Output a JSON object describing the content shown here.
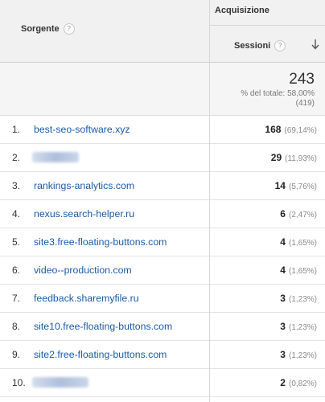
{
  "header": {
    "source_label": "Sorgente",
    "help_glyph": "?",
    "acquisition_label": "Acquisizione",
    "sessions_label": "Sessioni",
    "sort_icon": "arrow-down-icon"
  },
  "totals": {
    "sessions": "243",
    "line1": "% del totale: 58,00%",
    "line2": "(419)"
  },
  "rows": [
    {
      "index": "1.",
      "source": "best-seo-software.xyz",
      "sessions": "168",
      "pct": "(69,14%)"
    },
    {
      "index": "2.",
      "source": "",
      "sessions": "29",
      "pct": "(11,93%)"
    },
    {
      "index": "3.",
      "source": "rankings-analytics.com",
      "sessions": "14",
      "pct": "(5,76%)"
    },
    {
      "index": "4.",
      "source": "nexus.search-helper.ru",
      "sessions": "6",
      "pct": "(2,47%)"
    },
    {
      "index": "5.",
      "source": "site3.free-floating-buttons.com",
      "sessions": "4",
      "pct": "(1,65%)"
    },
    {
      "index": "6.",
      "source": "video--production.com",
      "sessions": "4",
      "pct": "(1,65%)"
    },
    {
      "index": "7.",
      "source": "feedback.sharemyfile.ru",
      "sessions": "3",
      "pct": "(1,23%)"
    },
    {
      "index": "8.",
      "source": "site10.free-floating-buttons.com",
      "sessions": "3",
      "pct": "(1,23%)"
    },
    {
      "index": "9.",
      "source": "site2.free-floating-buttons.com",
      "sessions": "3",
      "pct": "(1,23%)"
    },
    {
      "index": "10.",
      "source": "",
      "sessions": "2",
      "pct": "(0,82%)"
    }
  ],
  "colors": {
    "link": "#1a5aa8",
    "header_bg": "#f1f1f1",
    "totals_bg": "#f5f5f5"
  }
}
